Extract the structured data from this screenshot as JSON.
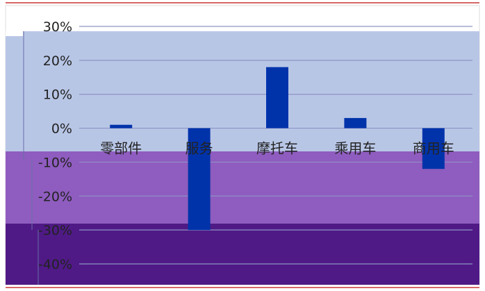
{
  "chart_data": {
    "type": "bar",
    "categories": [
      "零部件",
      "服务",
      "摩托车",
      "乘用车",
      "商用车"
    ],
    "series": [
      {
        "values": [
          1,
          -30,
          18,
          3,
          -12
        ]
      }
    ],
    "y_tick_labels": [
      "30%",
      "20%",
      "10%",
      "0%",
      "-10%",
      "-20%",
      "-30%",
      "-40%"
    ],
    "ylim": [
      -40,
      30
    ],
    "y_unit": "%",
    "grid": true,
    "legend": "none",
    "colors": {
      "bar": "#0033aa",
      "band_top": "#b8c6e6",
      "band_middle": "#8f5cbf",
      "band_bottom": "#4f1a86",
      "grid": "#8d92c4",
      "frame": "#cc3333"
    }
  }
}
